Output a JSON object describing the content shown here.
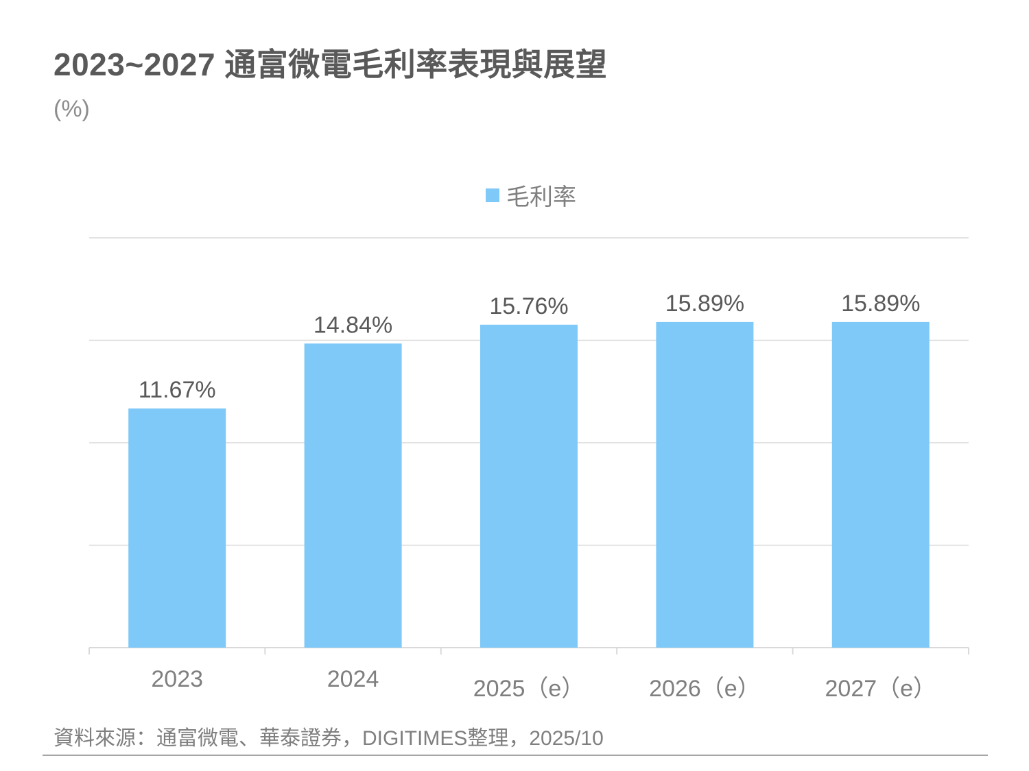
{
  "header": {
    "title": "2023~2027 通富微電毛利率表現與展望",
    "unit": "(%)"
  },
  "legend": {
    "label": "毛利率",
    "color": "#7fc9f8"
  },
  "footer": {
    "source": "資料來源：通富微電、華泰證券，DIGITIMES整理，2025/10"
  },
  "chart_data": {
    "type": "bar",
    "title": "2023~2027 通富微電毛利率表現與展望",
    "ylabel": "(%)",
    "xlabel": "",
    "categories": [
      "2023",
      "2024",
      "2025（e）",
      "2026（e）",
      "2027（e）"
    ],
    "series": [
      {
        "name": "毛利率",
        "values": [
          11.67,
          14.84,
          15.76,
          15.89,
          15.89
        ]
      }
    ],
    "data_labels": [
      "11.67%",
      "14.84%",
      "15.76%",
      "15.89%",
      "15.89%"
    ],
    "ylim": [
      0,
      20
    ],
    "y_gridlines": [
      0,
      5,
      10,
      15,
      20
    ],
    "grid": true,
    "legend_position": "top-center",
    "bar_color": "#7fc9f8"
  }
}
